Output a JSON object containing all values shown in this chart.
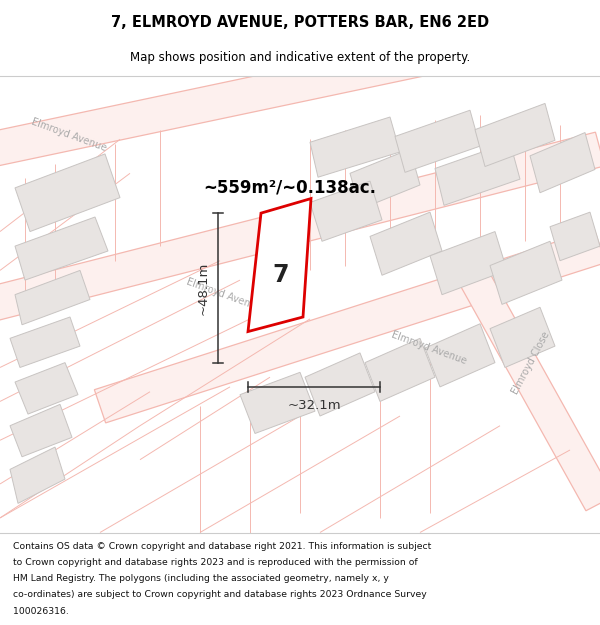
{
  "title": "7, ELMROYD AVENUE, POTTERS BAR, EN6 2ED",
  "subtitle": "Map shows position and indicative extent of the property.",
  "area_label": "~559m²/~0.138ac.",
  "width_label": "~32.1m",
  "height_label": "~48.1m",
  "property_number": "7",
  "footer_lines": [
    "Contains OS data © Crown copyright and database right 2021. This information is subject",
    "to Crown copyright and database rights 2023 and is reproduced with the permission of",
    "HM Land Registry. The polygons (including the associated geometry, namely x, y",
    "co-ordinates) are subject to Crown copyright and database rights 2023 Ordnance Survey",
    "100026316."
  ],
  "map_bg": "#ffffff",
  "road_line_color": "#f4b8b0",
  "road_fill_color": "#fdf0ee",
  "building_fill": "#e8e4e2",
  "building_border": "#c8c4c2",
  "property_fill": "#ffffff",
  "property_border": "#dd0000",
  "dim_color": "#333333",
  "street_label_color": "#aaaaaa",
  "area_label_color": "#000000",
  "title_color": "#000000",
  "footer_color": "#111111"
}
